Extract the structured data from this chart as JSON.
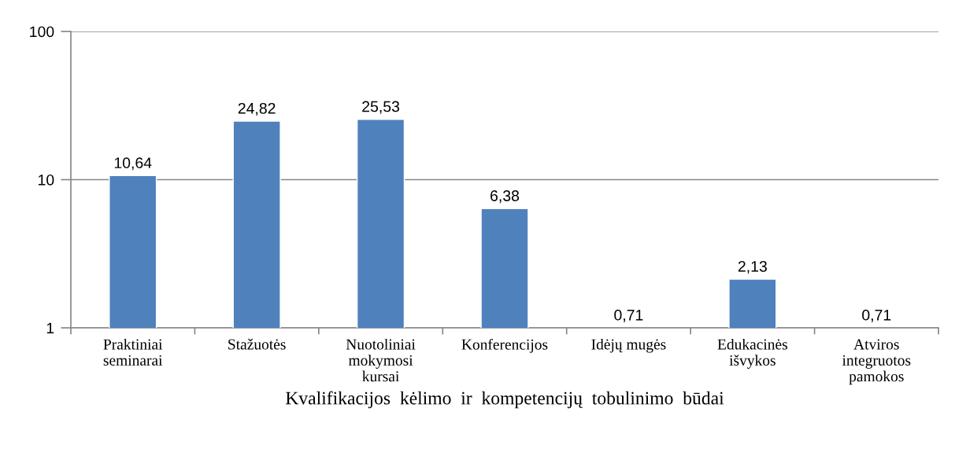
{
  "chart_data": {
    "type": "bar",
    "categories": [
      "Praktiniai\nseminarai",
      "Stažuotės",
      "Nuotoliniai\nmokymosi\nkursai",
      "Konferencijos",
      "Idėjų mugės",
      "Edukacinės\nišvykos",
      "Atviros\nintegruotos\npamokos"
    ],
    "values": [
      10.64,
      24.82,
      25.53,
      6.38,
      null,
      2.13,
      null
    ],
    "value_labels": [
      "10,64",
      "24,82",
      "25,53",
      "6,38",
      "0,71",
      "2,13",
      "0,71"
    ],
    "color": "#4f81bd",
    "xlabel": "Kvalifikacijos  kėlimo  ir  kompetencijų  tobulinimo  būdai",
    "log": true,
    "ylim": [
      1,
      100
    ],
    "yticks": [
      1,
      10,
      100
    ],
    "grid": "y",
    "legend": false
  }
}
